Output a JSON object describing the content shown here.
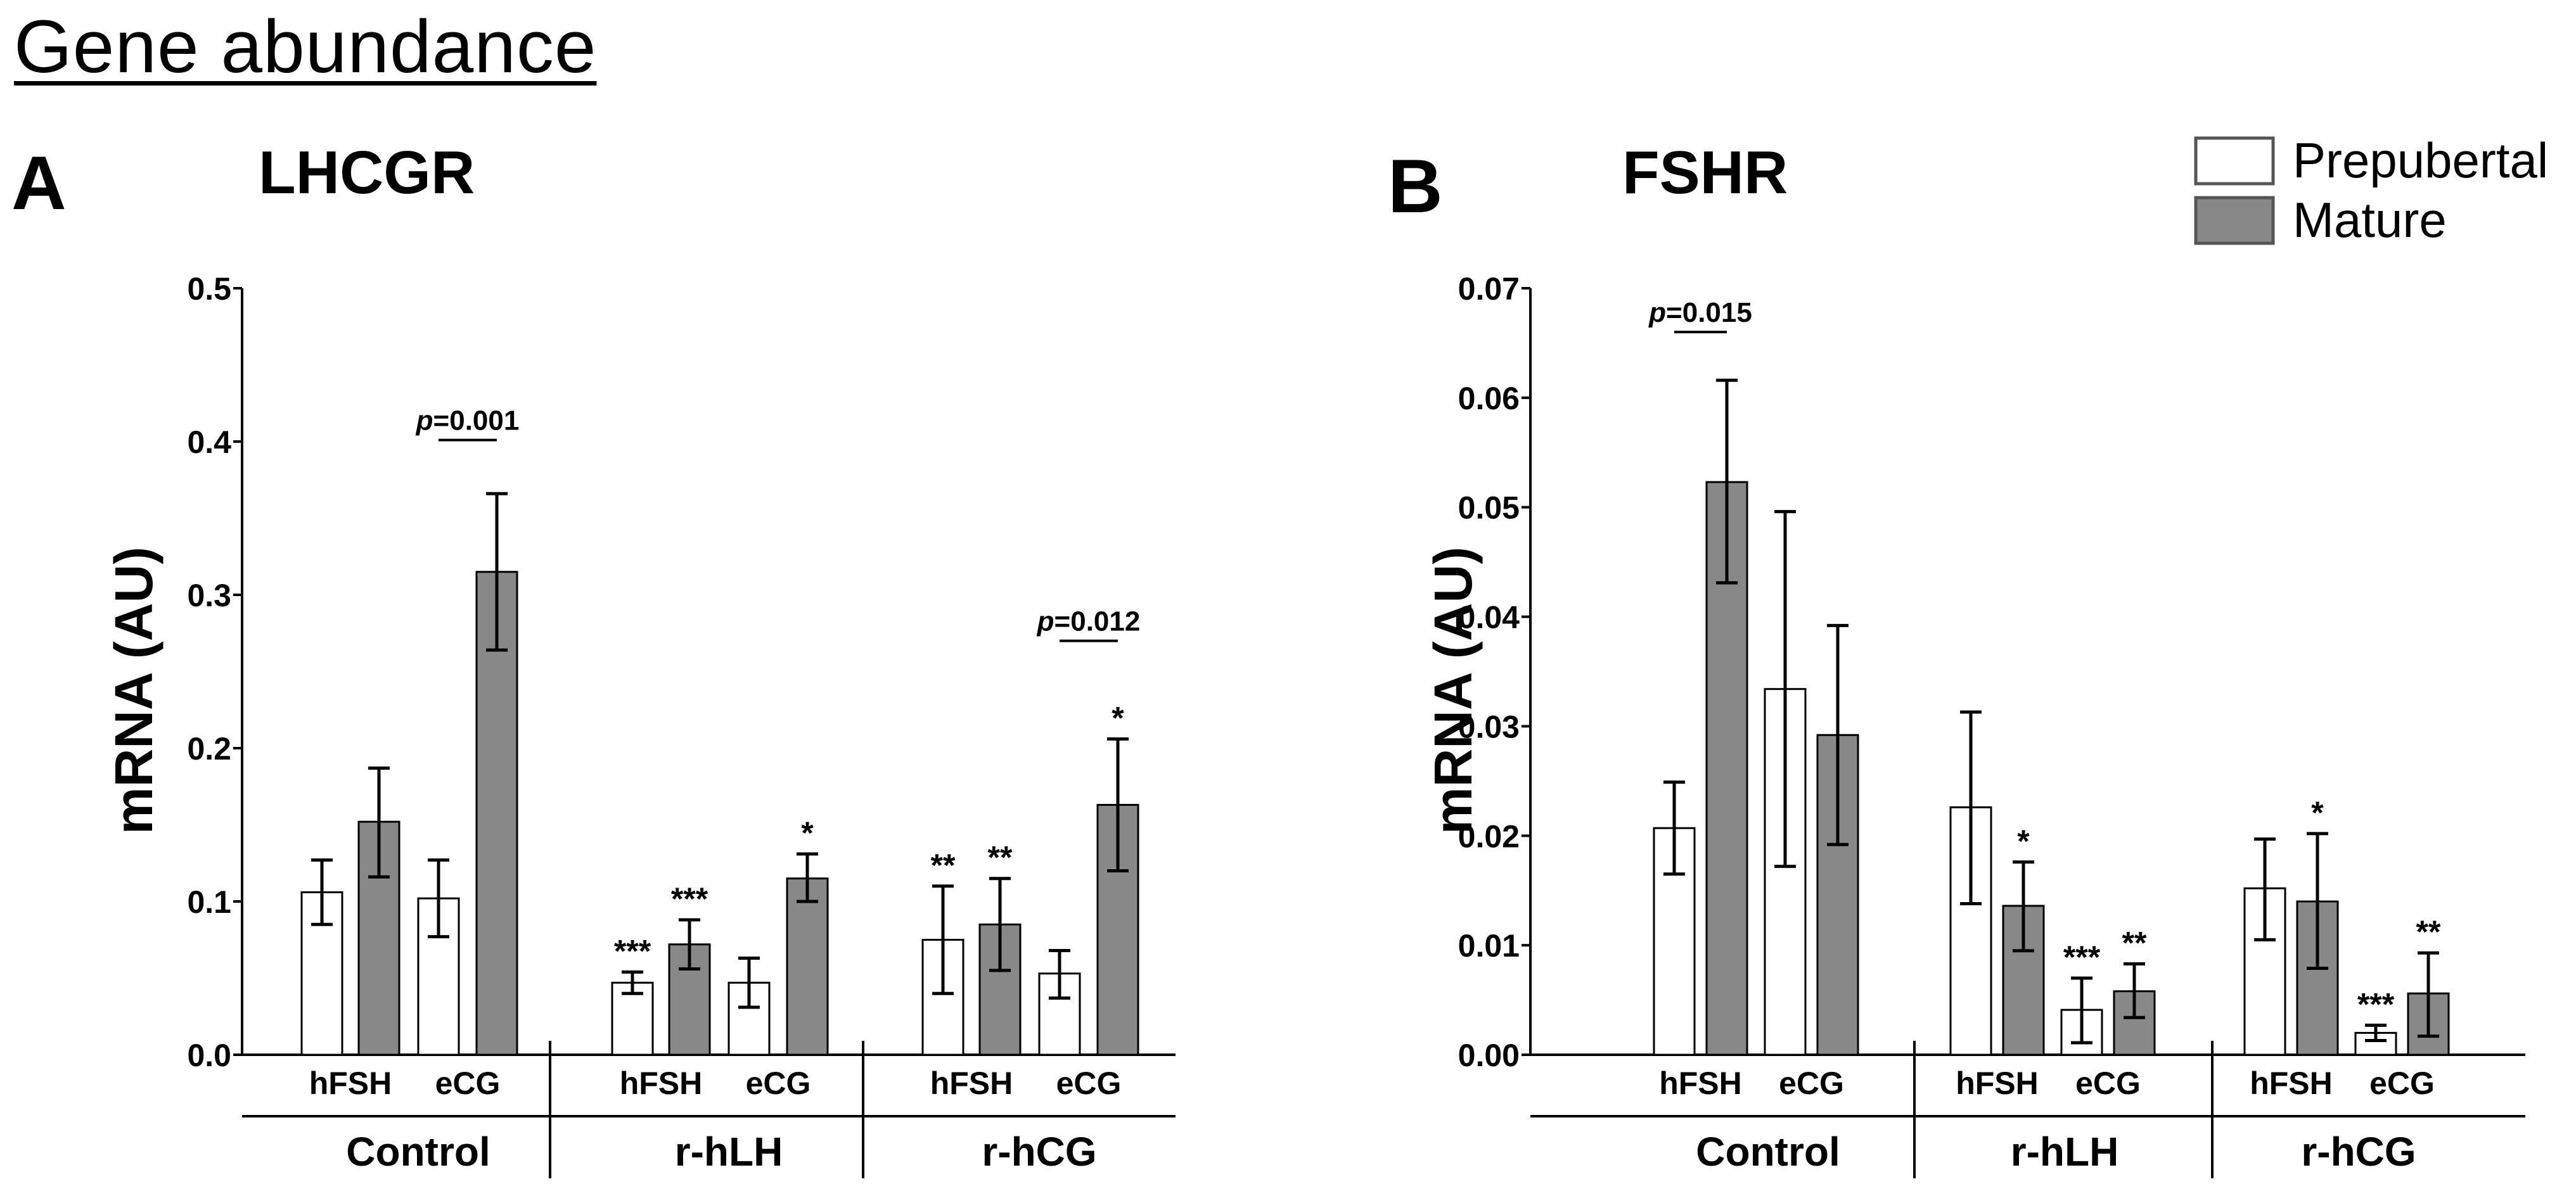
{
  "figure": {
    "title": "Gene abundance"
  },
  "legend": {
    "items": [
      {
        "label": "Prepubertal",
        "color": "#ffffff"
      },
      {
        "label": "Mature",
        "color": "#888888"
      }
    ]
  },
  "colors": {
    "prepubertal": "#ffffff",
    "mature": "#888888",
    "axis": "#000000"
  },
  "chart_data": [
    {
      "panel": "A",
      "type": "bar",
      "title": "LHCGR",
      "ylabel": "mRNA (AU)",
      "ylim": [
        0,
        0.5
      ],
      "yticks": [
        "0.0",
        "0.1",
        "0.2",
        "0.3",
        "0.4",
        "0.5"
      ],
      "ytick_values": [
        0,
        0.1,
        0.2,
        0.3,
        0.4,
        0.5
      ],
      "groups": [
        {
          "label": "Control",
          "subgroups": [
            {
              "label": "hFSH",
              "bars": [
                {
                  "series": "Prepubertal",
                  "value": 0.106,
                  "err_low": 0.085,
                  "err_high": 0.127,
                  "sig": ""
                },
                {
                  "series": "Mature",
                  "value": 0.152,
                  "err_low": 0.116,
                  "err_high": 0.187,
                  "sig": ""
                }
              ]
            },
            {
              "label": "eCG",
              "bars": [
                {
                  "series": "Prepubertal",
                  "value": 0.102,
                  "err_low": 0.077,
                  "err_high": 0.127,
                  "sig": ""
                },
                {
                  "series": "Mature",
                  "value": 0.315,
                  "err_low": 0.264,
                  "err_high": 0.366,
                  "sig": ""
                }
              ]
            }
          ]
        },
        {
          "label": "r-hLH",
          "subgroups": [
            {
              "label": "hFSH",
              "bars": [
                {
                  "series": "Prepubertal",
                  "value": 0.047,
                  "err_low": 0.04,
                  "err_high": 0.054,
                  "sig": "***"
                },
                {
                  "series": "Mature",
                  "value": 0.072,
                  "err_low": 0.056,
                  "err_high": 0.088,
                  "sig": "***"
                }
              ]
            },
            {
              "label": "eCG",
              "bars": [
                {
                  "series": "Prepubertal",
                  "value": 0.047,
                  "err_low": 0.031,
                  "err_high": 0.063,
                  "sig": ""
                },
                {
                  "series": "Mature",
                  "value": 0.115,
                  "err_low": 0.1,
                  "err_high": 0.131,
                  "sig": "*"
                }
              ]
            }
          ]
        },
        {
          "label": "r-hCG",
          "subgroups": [
            {
              "label": "hFSH",
              "bars": [
                {
                  "series": "Prepubertal",
                  "value": 0.075,
                  "err_low": 0.04,
                  "err_high": 0.11,
                  "sig": "**"
                },
                {
                  "series": "Mature",
                  "value": 0.085,
                  "err_low": 0.055,
                  "err_high": 0.115,
                  "sig": "**"
                }
              ]
            },
            {
              "label": "eCG",
              "bars": [
                {
                  "series": "Prepubertal",
                  "value": 0.053,
                  "err_low": 0.037,
                  "err_high": 0.068,
                  "sig": ""
                },
                {
                  "series": "Mature",
                  "value": 0.163,
                  "err_low": 0.12,
                  "err_high": 0.206,
                  "sig": "*"
                }
              ]
            }
          ]
        }
      ],
      "annotations": [
        {
          "text": "p=0.001",
          "group": 0,
          "subgroup": 1,
          "y": 0.401
        },
        {
          "text": "p=0.012",
          "group": 2,
          "subgroup": 1,
          "y": 0.27
        }
      ]
    },
    {
      "panel": "B",
      "type": "bar",
      "title": "FSHR",
      "ylabel": "mRNA (AU)",
      "ylim": [
        0,
        0.07
      ],
      "yticks": [
        "0.00",
        "0.01",
        "0.02",
        "0.03",
        "0.04",
        "0.05",
        "0.06",
        "0.07"
      ],
      "ytick_values": [
        0,
        0.01,
        0.02,
        0.03,
        0.04,
        0.05,
        0.06,
        0.07
      ],
      "groups": [
        {
          "label": "Control",
          "subgroups": [
            {
              "label": "hFSH",
              "bars": [
                {
                  "series": "Prepubertal",
                  "value": 0.0207,
                  "err_low": 0.0165,
                  "err_high": 0.0249,
                  "sig": ""
                },
                {
                  "series": "Mature",
                  "value": 0.0523,
                  "err_low": 0.0431,
                  "err_high": 0.0616,
                  "sig": ""
                }
              ]
            },
            {
              "label": "eCG",
              "bars": [
                {
                  "series": "Prepubertal",
                  "value": 0.0334,
                  "err_low": 0.0172,
                  "err_high": 0.0496,
                  "sig": ""
                },
                {
                  "series": "Mature",
                  "value": 0.0292,
                  "err_low": 0.0192,
                  "err_high": 0.0392,
                  "sig": ""
                }
              ]
            }
          ]
        },
        {
          "label": "r-hLH",
          "subgroups": [
            {
              "label": "hFSH",
              "bars": [
                {
                  "series": "Prepubertal",
                  "value": 0.0226,
                  "err_low": 0.0138,
                  "err_high": 0.0313,
                  "sig": ""
                },
                {
                  "series": "Mature",
                  "value": 0.0136,
                  "err_low": 0.0095,
                  "err_high": 0.0176,
                  "sig": "*"
                }
              ]
            },
            {
              "label": "eCG",
              "bars": [
                {
                  "series": "Prepubertal",
                  "value": 0.0041,
                  "err_low": 0.0011,
                  "err_high": 0.007,
                  "sig": "***"
                },
                {
                  "series": "Mature",
                  "value": 0.0058,
                  "err_low": 0.0034,
                  "err_high": 0.0083,
                  "sig": "**"
                }
              ]
            }
          ]
        },
        {
          "label": "r-hCG",
          "subgroups": [
            {
              "label": "hFSH",
              "bars": [
                {
                  "series": "Prepubertal",
                  "value": 0.0152,
                  "err_low": 0.0105,
                  "err_high": 0.0197,
                  "sig": ""
                },
                {
                  "series": "Mature",
                  "value": 0.014,
                  "err_low": 0.0079,
                  "err_high": 0.0202,
                  "sig": "*"
                }
              ]
            },
            {
              "label": "eCG",
              "bars": [
                {
                  "series": "Prepubertal",
                  "value": 0.002,
                  "err_low": 0.0013,
                  "err_high": 0.0027,
                  "sig": "***"
                },
                {
                  "series": "Mature",
                  "value": 0.0056,
                  "err_low": 0.0017,
                  "err_high": 0.0093,
                  "sig": "**"
                }
              ]
            }
          ]
        }
      ],
      "annotations": [
        {
          "text": "p=0.015",
          "group": 0,
          "subgroup": 0,
          "y": 0.066
        }
      ]
    }
  ]
}
